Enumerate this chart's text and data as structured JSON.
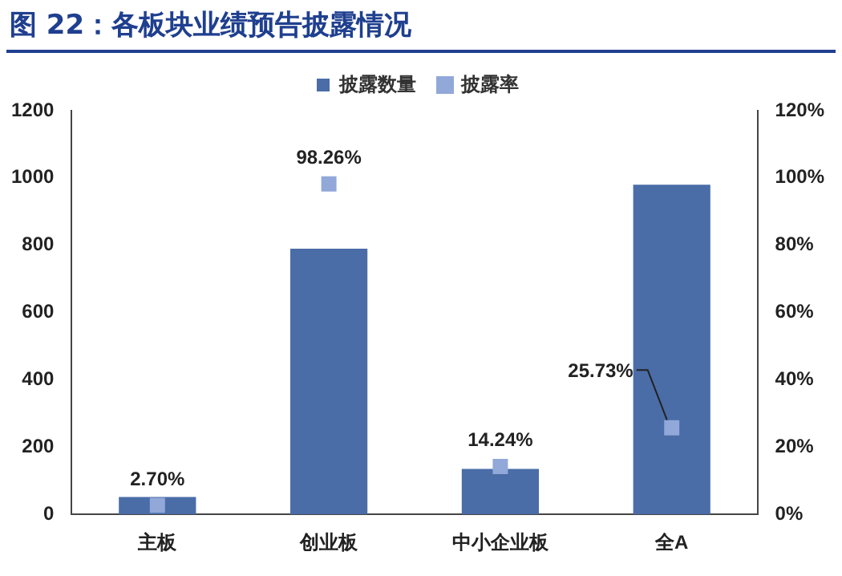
{
  "chart_data": {
    "type": "bar",
    "title": "图 22：各板块业绩预告披露情况",
    "categories": [
      "主板",
      "创业板",
      "中小企业板",
      "全A"
    ],
    "series": [
      {
        "name": "披露数量",
        "color": "#4a6da7",
        "values": [
          52,
          790,
          135,
          980
        ]
      },
      {
        "name": "披露率",
        "type": "scatter",
        "axis": "y2",
        "color": "#91a8d8",
        "values": [
          2.7,
          98.26,
          14.24,
          25.73
        ],
        "value_labels": [
          "2.70%",
          "98.26%",
          "14.24%",
          "25.73%"
        ]
      }
    ],
    "ylim": [
      0,
      1200
    ],
    "yticks": [
      0,
      200,
      400,
      600,
      800,
      1000,
      1200
    ],
    "y2lim": [
      0,
      120
    ],
    "y2ticks": [
      {
        "value": 0,
        "label": "0%"
      },
      {
        "value": 20,
        "label": "20%"
      },
      {
        "value": 40,
        "label": "40%"
      },
      {
        "value": 60,
        "label": "60%"
      },
      {
        "value": 80,
        "label": "80%"
      },
      {
        "value": 100,
        "label": "100%"
      },
      {
        "value": 120,
        "label": "120%"
      }
    ],
    "grid": false,
    "legend": "top",
    "marker": "square"
  }
}
